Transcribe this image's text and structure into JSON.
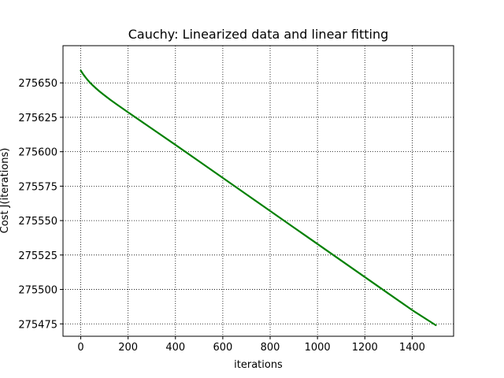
{
  "chart_data": {
    "type": "line",
    "title": "Cauchy: Linearized data and linear fitting",
    "xlabel": "iterations",
    "ylabel": "Cost J(iterations)",
    "xlim": [
      -75,
      1575
    ],
    "ylim": [
      275466,
      275677
    ],
    "xticks": [
      0,
      200,
      400,
      600,
      800,
      1000,
      1200,
      1400
    ],
    "yticks": [
      275475,
      275500,
      275525,
      275550,
      275575,
      275600,
      275625,
      275650
    ],
    "grid": true,
    "series": [
      {
        "color": "#008000",
        "x": [
          0,
          10,
          20,
          30,
          40,
          50,
          60,
          80,
          100,
          125,
          150,
          200,
          250,
          300,
          400,
          500,
          600,
          700,
          800,
          900,
          1000,
          1100,
          1200,
          1300,
          1400,
          1500
        ],
        "y": [
          275659,
          275656.3,
          275654,
          275651.9,
          275650,
          275648.3,
          275646.7,
          275643.7,
          275641,
          275637.7,
          275634.6,
          275628.6,
          275622.7,
          275616.8,
          275605,
          275593,
          275581,
          275569,
          275557,
          275545,
          275533,
          275521,
          275509,
          275497,
          275485,
          275474
        ]
      }
    ]
  }
}
